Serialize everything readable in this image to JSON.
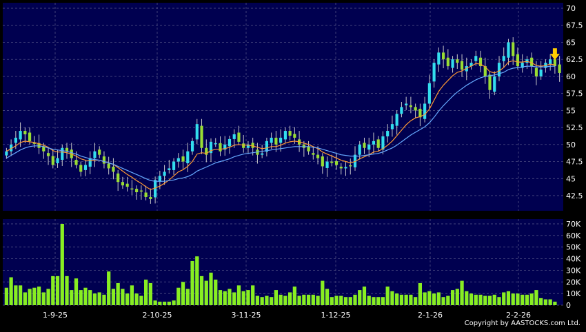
{
  "colors": {
    "background": "#000000",
    "plot_background": "#000050",
    "grid": "#5a5a8a",
    "candle_up": "#33ddee",
    "candle_down": "#99dd33",
    "sma_short": "#ff9933",
    "sma_long": "#66aaff",
    "volume_bar": "#88ee22",
    "marker": "#ffcc00"
  },
  "copyright": "Copyright by AASTOCKS.com Ltd.",
  "marker_icon": "down-arrow-icon",
  "chart_data": [
    {
      "type": "candlestick",
      "title": "",
      "grid": true,
      "ylim": [
        40,
        70
      ],
      "y_ticks": [
        "42.5",
        "45",
        "47.5",
        "50",
        "52.5",
        "55",
        "57.5",
        "60",
        "62.5",
        "65",
        "67.5",
        "70"
      ],
      "x_ticks": [
        "1-9-25",
        "2-10-25",
        "3-11-25",
        "1-12-25",
        "2-1-26",
        "2-2-26"
      ],
      "closes": [
        49,
        50,
        51,
        52,
        51.5,
        50.5,
        50.2,
        49.5,
        49,
        48.3,
        47,
        48,
        49.5,
        49,
        48,
        47,
        46,
        47,
        48,
        49,
        48.5,
        47.2,
        46.5,
        46,
        44.5,
        44,
        43.8,
        43.5,
        43,
        43.2,
        42.3,
        42,
        44.8,
        45.4,
        46,
        46.5,
        47.5,
        48,
        47.5,
        49,
        50.5,
        53,
        49.5,
        48.5,
        50.4,
        50.2,
        49,
        50,
        50.8,
        51.5,
        50.4,
        49.5,
        50,
        49.5,
        48.5,
        48.7,
        50.5,
        51,
        50,
        51,
        52,
        51.3,
        51,
        50,
        49.5,
        49,
        48.5,
        48,
        46.8,
        47.5,
        47.3,
        47,
        46.5,
        46.7,
        46.9,
        48.5,
        50,
        49.5,
        50,
        50.5,
        49.5,
        51.2,
        52,
        53,
        54.5,
        55.5,
        56,
        55.5,
        55,
        54,
        56,
        59,
        62,
        63.5,
        62.5,
        61.5,
        62.5,
        62,
        61,
        61.5,
        62,
        63,
        61.5,
        60,
        58,
        60,
        62,
        63,
        65,
        63,
        61.5,
        62,
        62.5,
        61.5,
        60,
        61,
        62,
        62.5,
        61.5,
        60.5
      ],
      "marker_at_last": true,
      "series": [
        {
          "name": "",
          "role": "sma_short",
          "values": [
            49,
            49.4,
            49.8,
            50.3,
            50.5,
            50.4,
            50.3,
            50.1,
            49.9,
            49.6,
            49.1,
            48.9,
            48.9,
            48.8,
            48.6,
            48.3,
            47.9,
            47.7,
            47.6,
            47.7,
            47.7,
            47.5,
            47.3,
            47.1,
            46.6,
            46.1,
            45.6,
            45.2,
            44.7,
            44.3,
            43.8,
            43.4,
            43.6,
            43.9,
            44.3,
            44.8,
            45.4,
            46,
            46.3,
            46.8,
            47.5,
            48.6,
            48.8,
            48.7,
            49.1,
            49.3,
            49.3,
            49.4,
            49.6,
            49.9,
            50,
            49.9,
            49.9,
            49.8,
            49.6,
            49.4,
            49.5,
            49.7,
            49.7,
            49.9,
            50.2,
            50.4,
            50.5,
            50.4,
            50.2,
            50,
            49.7,
            49.4,
            48.9,
            48.6,
            48.3,
            48,
            47.7,
            47.5,
            47.3,
            47.5,
            47.9,
            48.2,
            48.5,
            48.9,
            49,
            49.4,
            49.9,
            50.5,
            51.3,
            52.1,
            52.9,
            53.5,
            53.9,
            54.1,
            54.4,
            55.2,
            56.5,
            57.8,
            58.7,
            59.4,
            60.1,
            60.6,
            60.8,
            61.2,
            61.5,
            61.9,
            61.8,
            61.4,
            60.7,
            60.5,
            60.8,
            61.3,
            62.1,
            62.3,
            62.1,
            62.1,
            62.2,
            62,
            61.6,
            61.5,
            61.6,
            61.8,
            61.7
          ]
        },
        {
          "name": "",
          "role": "sma_long",
          "values": [
            48,
            48.4,
            48.8,
            49.2,
            49.5,
            49.7,
            49.8,
            49.8,
            49.7,
            49.5,
            49.3,
            49.2,
            49.1,
            49,
            48.8,
            48.6,
            48.3,
            48.1,
            47.9,
            47.8,
            47.7,
            47.5,
            47.3,
            47.1,
            46.8,
            46.5,
            46.2,
            45.9,
            45.6,
            45.3,
            45,
            44.7,
            44.6,
            44.6,
            44.6,
            44.7,
            44.8,
            45,
            45.1,
            45.3,
            45.6,
            46.1,
            46.4,
            46.7,
            47,
            47.3,
            47.5,
            47.7,
            47.9,
            48.2,
            48.4,
            48.6,
            48.7,
            48.8,
            48.9,
            49,
            49.1,
            49.2,
            49.3,
            49.4,
            49.5,
            49.6,
            49.7,
            49.7,
            49.7,
            49.7,
            49.6,
            49.5,
            49.3,
            49.1,
            48.9,
            48.7,
            48.5,
            48.4,
            48.3,
            48.3,
            48.3,
            48.4,
            48.5,
            48.6,
            48.7,
            48.9,
            49.2,
            49.5,
            49.9,
            50.4,
            50.9,
            51.4,
            51.8,
            52.2,
            52.6,
            53.2,
            54,
            54.9,
            55.7,
            56.4,
            57.1,
            57.7,
            58.2,
            58.7,
            59.1,
            59.5,
            59.8,
            60,
            60.1,
            60.2,
            60.4,
            60.6,
            61,
            61.2,
            61.3,
            61.4,
            61.5,
            61.5,
            61.4,
            61.4,
            61.4,
            61.5,
            61.5
          ]
        }
      ]
    },
    {
      "type": "bar",
      "title": "",
      "grid": true,
      "ylim": [
        0,
        70000
      ],
      "y_ticks": [
        "0",
        "10K",
        "20K",
        "30K",
        "40K",
        "50K",
        "60K",
        "70K"
      ],
      "values": [
        15000,
        24000,
        17000,
        17000,
        11000,
        14000,
        15000,
        16000,
        11000,
        14000,
        25000,
        25000,
        70000,
        25000,
        13000,
        23000,
        13000,
        15000,
        13000,
        10000,
        11000,
        9000,
        29000,
        14000,
        19000,
        14000,
        10000,
        17000,
        10000,
        8000,
        22000,
        19000,
        4000,
        3000,
        3000,
        3000,
        4000,
        15000,
        20000,
        14000,
        38000,
        42000,
        25000,
        21000,
        28000,
        22000,
        13000,
        12000,
        14000,
        11000,
        17000,
        12000,
        13000,
        17000,
        8000,
        7000,
        8000,
        7000,
        13000,
        9000,
        8000,
        11000,
        16000,
        8000,
        9000,
        9000,
        9000,
        8000,
        21000,
        14000,
        7000,
        8000,
        8000,
        7000,
        7000,
        9000,
        13000,
        16000,
        8000,
        7000,
        7000,
        7000,
        16000,
        12000,
        10000,
        9000,
        9000,
        9000,
        7000,
        19000,
        11000,
        12000,
        10000,
        11000,
        7000,
        8000,
        13000,
        14000,
        21000,
        12000,
        10000,
        9000,
        9000,
        8000,
        8000,
        9000,
        7000,
        11000,
        12000,
        10000,
        10000,
        9000,
        9000,
        10000,
        13000,
        6000,
        5000,
        5000,
        3000
      ]
    }
  ]
}
